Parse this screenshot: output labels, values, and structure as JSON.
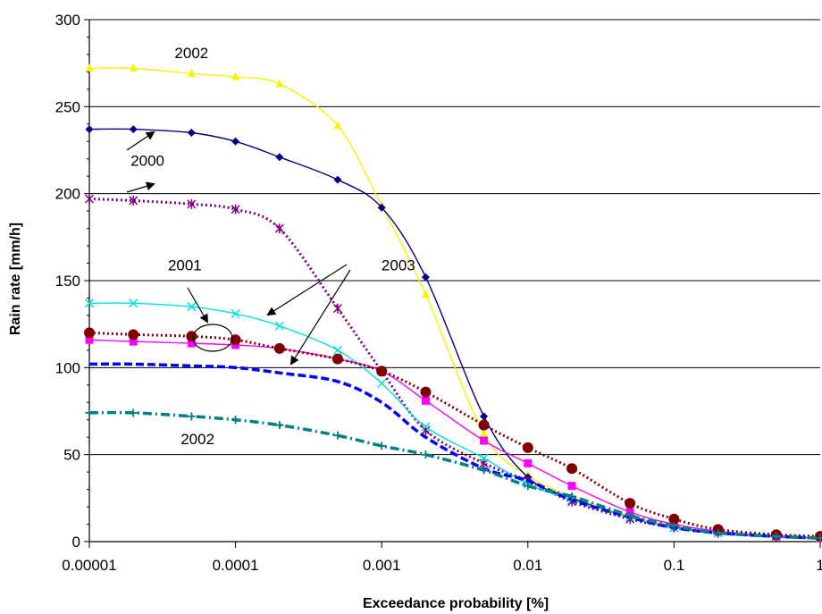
{
  "chart_data": {
    "type": "line",
    "title": "",
    "xlabel": "Exceedance probability [%]",
    "ylabel": "Rain rate [mm/h]",
    "xscale": "log",
    "xlim": [
      1e-05,
      1
    ],
    "ylim": [
      0,
      300
    ],
    "grid": "horizontal",
    "legend": "none",
    "x_tick_labels": [
      "0.00001",
      "0.0001",
      "0.001",
      "0.01",
      "0.1",
      "1"
    ],
    "y_tick_labels": [
      "0",
      "50",
      "100",
      "150",
      "200",
      "250",
      "300"
    ],
    "x": [
      1e-05,
      2e-05,
      5e-05,
      0.0001,
      0.0002,
      0.0005,
      0.001,
      0.002,
      0.005,
      0.01,
      0.02,
      0.05,
      0.1,
      0.2,
      0.5,
      1
    ],
    "series": [
      {
        "color": "#f5f500",
        "line": "solid",
        "marker": "triangle",
        "values": [
          272,
          272,
          269,
          267,
          263,
          239,
          193,
          142,
          62,
          38,
          26,
          15,
          9,
          5,
          3,
          2
        ]
      },
      {
        "color": "#000080",
        "line": "solid",
        "marker": "diamond",
        "values": [
          237,
          237,
          235,
          230,
          221,
          208,
          192,
          152,
          72,
          37,
          25,
          14,
          8,
          5,
          3,
          2
        ]
      },
      {
        "color": "#800080",
        "line": "dotted",
        "marker": "asterisk",
        "values": [
          197,
          196,
          194,
          191,
          180,
          134,
          98,
          64,
          45,
          35,
          23,
          13,
          8,
          5,
          3,
          2
        ]
      },
      {
        "color": "#00e0e0",
        "line": "solid",
        "marker": "x",
        "values": [
          137,
          137,
          135,
          131,
          124,
          110,
          91,
          66,
          48,
          33,
          24,
          14,
          8,
          5,
          3,
          2
        ]
      },
      {
        "color": "#ff00ff",
        "line": "solid",
        "marker": "square",
        "values": [
          116,
          115,
          114,
          113,
          111,
          105,
          98,
          81,
          58,
          45,
          32,
          17,
          10,
          6,
          3,
          2
        ]
      },
      {
        "color": "#800000",
        "line": "dotted",
        "marker": "circle",
        "values": [
          120,
          119,
          118,
          116,
          111,
          105,
          98,
          86,
          67,
          54,
          42,
          22,
          13,
          7,
          4,
          3
        ]
      },
      {
        "color": "#0000ff",
        "line": "dashed",
        "marker": "none",
        "values": [
          102,
          102,
          101,
          100,
          97,
          92,
          80,
          60,
          42,
          35,
          24,
          14,
          8,
          5,
          3,
          2
        ]
      },
      {
        "color": "#008080",
        "line": "dashdot",
        "marker": "plus",
        "values": [
          74,
          74,
          72,
          70,
          67,
          61,
          55,
          50,
          41,
          32,
          26,
          15,
          9,
          5,
          3,
          2
        ]
      }
    ],
    "annotations": [
      {
        "text": "2002",
        "x": 5e-05,
        "y": 278
      },
      {
        "text": "2000",
        "x": 2.5e-05,
        "y": 216
      },
      {
        "text": "2001",
        "x": 4.5e-05,
        "y": 156
      },
      {
        "text": "2003",
        "x": 0.0013,
        "y": 156
      },
      {
        "text": "2002",
        "x": 5.5e-05,
        "y": 56
      }
    ]
  }
}
